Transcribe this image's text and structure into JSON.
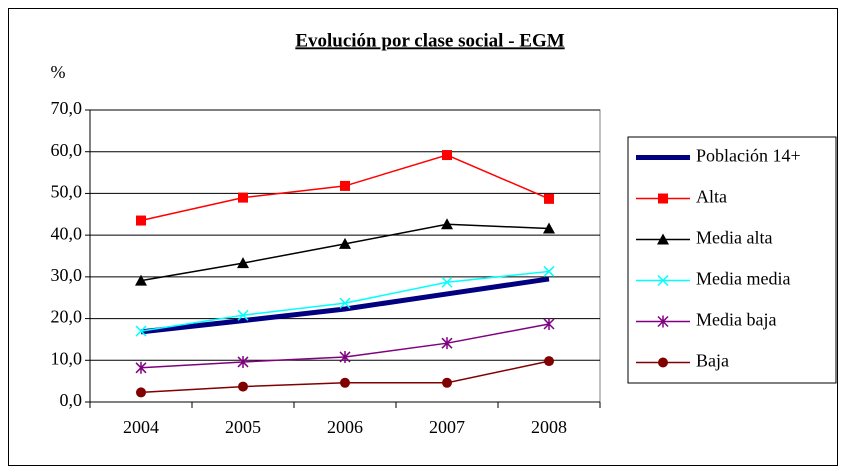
{
  "chart_data": {
    "type": "line",
    "title": "Evolución por clase social - EGM",
    "y_label": "%",
    "categories": [
      "2004",
      "2005",
      "2006",
      "2007",
      "2008"
    ],
    "series": [
      {
        "name": "Población 14+",
        "color": "#000080",
        "marker": "none",
        "linewidth": 5,
        "values": [
          16.8,
          19.5,
          22.3,
          25.9,
          29.5
        ]
      },
      {
        "name": "Alta",
        "color": "#ff0000",
        "marker": "square",
        "linewidth": 1.5,
        "values": [
          43.5,
          49.0,
          51.8,
          59.2,
          48.7
        ]
      },
      {
        "name": "Media alta",
        "color": "#000000",
        "marker": "triangle",
        "linewidth": 1.5,
        "values": [
          29.1,
          33.3,
          37.9,
          42.6,
          41.6
        ]
      },
      {
        "name": "Media media",
        "color": "#00ffff",
        "marker": "x",
        "linewidth": 1.5,
        "values": [
          17.0,
          20.8,
          23.7,
          28.7,
          31.3
        ]
      },
      {
        "name": "Media baja",
        "color": "#800080",
        "marker": "asterisk",
        "linewidth": 1.5,
        "values": [
          8.2,
          9.6,
          10.8,
          14.1,
          18.7
        ]
      },
      {
        "name": "Baja",
        "color": "#800000",
        "marker": "circle",
        "linewidth": 1.5,
        "values": [
          2.3,
          3.7,
          4.6,
          4.6,
          9.8
        ]
      }
    ],
    "ylim": [
      0,
      70
    ],
    "yticks": [
      {
        "value": 0,
        "label": "0,0"
      },
      {
        "value": 10,
        "label": "10,0"
      },
      {
        "value": 20,
        "label": "20,0"
      },
      {
        "value": 30,
        "label": "30,0"
      },
      {
        "value": 40,
        "label": "40,0"
      },
      {
        "value": 50,
        "label": "50,0"
      },
      {
        "value": 60,
        "label": "60,0"
      },
      {
        "value": 70,
        "label": "70,0"
      }
    ],
    "grid": true,
    "legend": "right"
  }
}
